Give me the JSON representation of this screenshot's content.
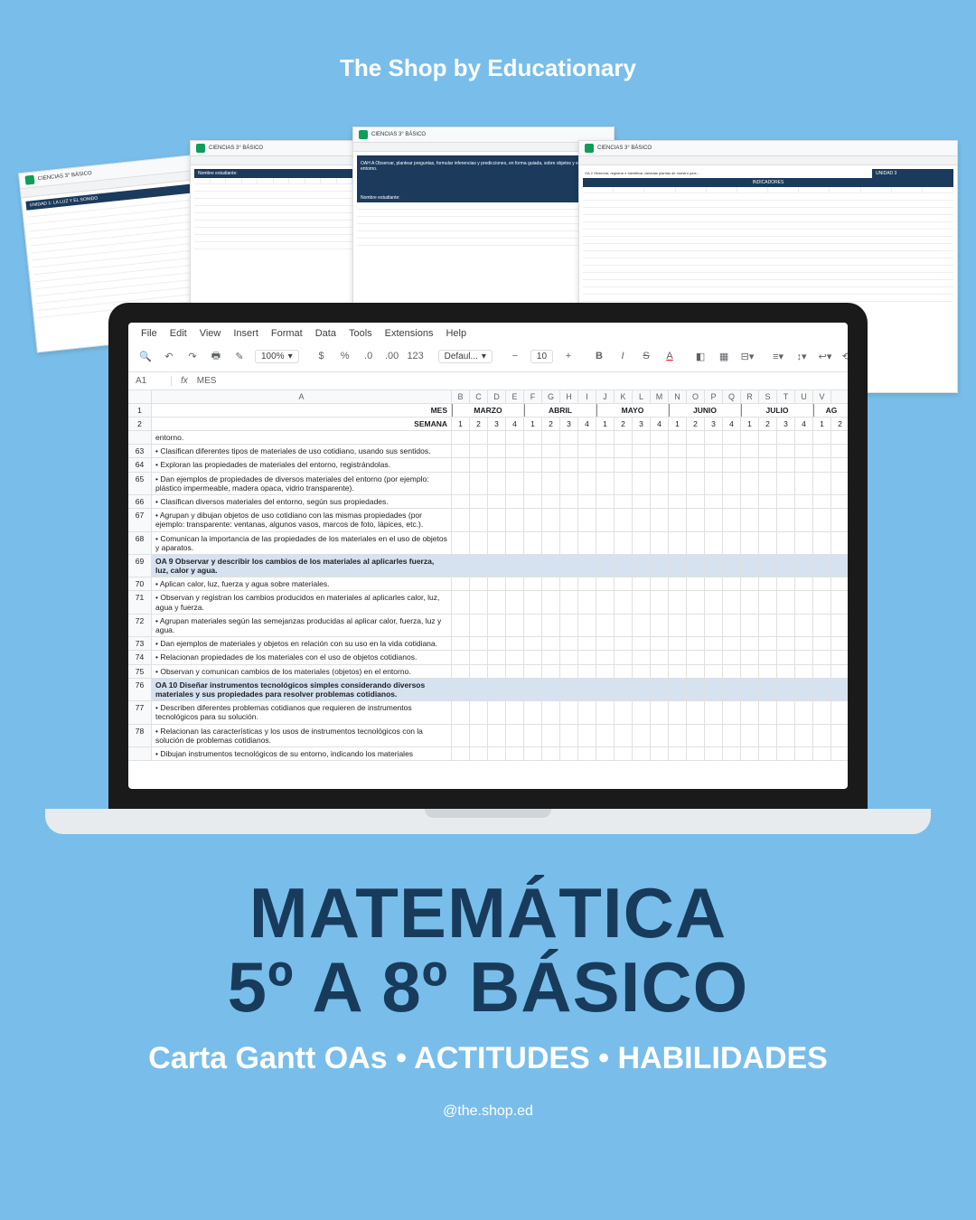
{
  "header": {
    "brand": "The Shop by Educationary"
  },
  "menus": [
    "File",
    "Edit",
    "View",
    "Insert",
    "Format",
    "Data",
    "Tools",
    "Extensions",
    "Help"
  ],
  "toolbar": {
    "zoom": "100%",
    "currency": "$",
    "percent": "%",
    "dec_dec": ".0",
    "dec_inc": ".00",
    "num_fmt": "123",
    "font": "Defaul...",
    "fontsize": "10",
    "cell_ref": "A1",
    "fx_label": "fx",
    "fx_value": "MES"
  },
  "columns": [
    "",
    "A",
    "B",
    "C",
    "D",
    "E",
    "F",
    "G",
    "H",
    "I",
    "J",
    "K",
    "L",
    "M",
    "N",
    "O",
    "P",
    "Q",
    "R",
    "S",
    "T",
    "U",
    "V"
  ],
  "months_row": {
    "rownum": "1",
    "label": "MES",
    "months": [
      "MARZO",
      "ABRIL",
      "MAYO",
      "JUNIO",
      "JULIO",
      "AG"
    ]
  },
  "weeks_row": {
    "rownum": "2",
    "label": "SEMANA",
    "weeks": [
      "1",
      "2",
      "3",
      "4",
      "1",
      "2",
      "3",
      "4",
      "1",
      "2",
      "3",
      "4",
      "1",
      "2",
      "3",
      "4",
      "1",
      "2",
      "3",
      "4",
      "1",
      "2"
    ]
  },
  "rows": [
    {
      "num": "",
      "text": "entorno.",
      "oa": false
    },
    {
      "num": "63",
      "text": "• Clasifican diferentes tipos de materiales de uso cotidiano, usando sus sentidos.",
      "oa": false
    },
    {
      "num": "64",
      "text": "• Exploran las propiedades de materiales del entorno, registrándolas.",
      "oa": false
    },
    {
      "num": "65",
      "text": "• Dan ejemplos de propiedades de diversos materiales del entorno (por ejemplo: plástico impermeable, madera opaca, vidrio transparente).",
      "oa": false
    },
    {
      "num": "66",
      "text": "• Clasifican diversos materiales del entorno, según sus propiedades.",
      "oa": false
    },
    {
      "num": "67",
      "text": "• Agrupan y dibujan objetos de uso cotidiano con las mismas propiedades (por ejemplo: transparente: ventanas, algunos vasos, marcos de foto, lápices, etc.).",
      "oa": false
    },
    {
      "num": "68",
      "text": "• Comunican la importancia de las propiedades de los materiales en el uso de objetos y aparatos.",
      "oa": false
    },
    {
      "num": "69",
      "text": "OA 9 Observar y describir los cambios de los materiales al aplicarles fuerza, luz, calor y agua.",
      "oa": true
    },
    {
      "num": "70",
      "text": "• Aplican calor, luz, fuerza y agua sobre materiales.",
      "oa": false
    },
    {
      "num": "71",
      "text": "• Observan y registran los cambios producidos en materiales al aplicarles calor, luz, agua y fuerza.",
      "oa": false
    },
    {
      "num": "72",
      "text": "• Agrupan materiales según las semejanzas producidas al aplicar calor, fuerza, luz y agua.",
      "oa": false
    },
    {
      "num": "73",
      "text": "• Dan ejemplos de materiales y objetos en relación con su uso en la vida cotidiana.",
      "oa": false
    },
    {
      "num": "74",
      "text": "• Relacionan propiedades de los materiales con el uso de objetos cotidianos.",
      "oa": false
    },
    {
      "num": "75",
      "text": "• Observan y comunican cambios de los materiales (objetos) en el entorno.",
      "oa": false
    },
    {
      "num": "76",
      "text": "OA 10 Diseñar instrumentos tecnológicos simples considerando diversos materiales y sus propiedades para resolver problemas cotidianos.",
      "oa": true
    },
    {
      "num": "77",
      "text": "• Describen diferentes problemas cotidianos que requieren de instrumentos tecnológicos para su solución.",
      "oa": false
    },
    {
      "num": "78",
      "text": "• Relacionan las características y los usos de instrumentos tecnológicos con la solución de problemas cotidianos.",
      "oa": false
    },
    {
      "num": "",
      "text": "• Dibujan instrumentos tecnológicos de su entorno, indicando los materiales",
      "oa": false
    }
  ],
  "mini_sheets": {
    "title": "CIENCIAS 3° BÁSICO",
    "unidad_a": "UNIDAD 1: LA LUZ Y EL SONIDO",
    "oah_a": "OAH A Observar, plantear preguntas, formular inferencias y predicciones, en forma guiada, sobre objetos y eventos del entorno.",
    "nombre": "Nombre estudiante:",
    "unidad3": "UNIDAD 3",
    "indicadores": "INDICADORES"
  },
  "bottom": {
    "title1": "MATEMÁTICA",
    "title2": "5º A 8º BÁSICO",
    "subtitle": "Carta Gantt OAs • ACTITUDES • HABILIDADES",
    "handle": "@the.shop.ed"
  },
  "colors": {
    "bg": "#79beea",
    "dark_navy": "#183b5c",
    "oa_highlight": "#d6e2f0"
  }
}
